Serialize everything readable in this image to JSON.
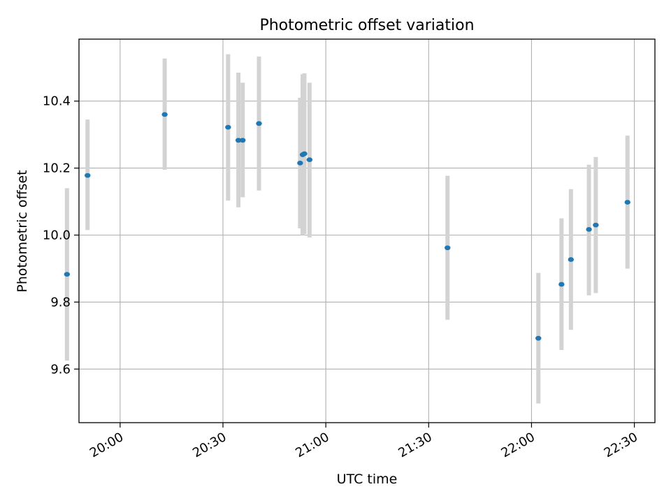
{
  "chart_data": {
    "type": "scatter",
    "title": "Photometric offset variation",
    "xlabel": "UTC time",
    "ylabel": "Photometric offset",
    "x_unit": "UTC",
    "xlim": [
      "19:48",
      "22:36"
    ],
    "ylim": [
      9.44,
      10.585
    ],
    "grid": true,
    "xticks": [
      {
        "value": "20:00",
        "label": "20:00"
      },
      {
        "value": "20:30",
        "label": "20:30"
      },
      {
        "value": "21:00",
        "label": "21:00"
      },
      {
        "value": "21:30",
        "label": "21:30"
      },
      {
        "value": "22:00",
        "label": "22:00"
      },
      {
        "value": "22:30",
        "label": "22:30"
      }
    ],
    "yticks": [
      {
        "value": 9.6,
        "label": "9.6"
      },
      {
        "value": 9.8,
        "label": "9.8"
      },
      {
        "value": 10.0,
        "label": "10.0"
      },
      {
        "value": 10.2,
        "label": "10.2"
      },
      {
        "value": 10.4,
        "label": "10.4"
      }
    ],
    "series": [
      {
        "marker_color": "#1f77b4",
        "errorbar_color": "#d3d3d3",
        "points": [
          {
            "x": "19:44:30",
            "y": 9.883,
            "ylow": 9.625,
            "yhigh": 10.14
          },
          {
            "x": "19:50:30",
            "y": 10.178,
            "ylow": 10.015,
            "yhigh": 10.345
          },
          {
            "x": "20:13:00",
            "y": 10.36,
            "ylow": 10.195,
            "yhigh": 10.527
          },
          {
            "x": "20:31:30",
            "y": 10.322,
            "ylow": 10.103,
            "yhigh": 10.54
          },
          {
            "x": "20:34:30",
            "y": 10.283,
            "ylow": 10.083,
            "yhigh": 10.485
          },
          {
            "x": "20:35:45",
            "y": 10.283,
            "ylow": 10.113,
            "yhigh": 10.455
          },
          {
            "x": "20:40:30",
            "y": 10.333,
            "ylow": 10.133,
            "yhigh": 10.533
          },
          {
            "x": "20:52:30",
            "y": 10.215,
            "ylow": 10.02,
            "yhigh": 10.41
          },
          {
            "x": "20:53:15",
            "y": 10.24,
            "ylow": 10.0,
            "yhigh": 10.48
          },
          {
            "x": "20:53:45",
            "y": 10.243,
            "ylow": 10.003,
            "yhigh": 10.483
          },
          {
            "x": "20:55:15",
            "y": 10.225,
            "ylow": 9.993,
            "yhigh": 10.455
          },
          {
            "x": "21:35:30",
            "y": 9.962,
            "ylow": 9.747,
            "yhigh": 10.177
          },
          {
            "x": "22:02:00",
            "y": 9.692,
            "ylow": 9.497,
            "yhigh": 9.887
          },
          {
            "x": "22:08:45",
            "y": 9.853,
            "ylow": 9.657,
            "yhigh": 10.05
          },
          {
            "x": "22:11:30",
            "y": 9.927,
            "ylow": 9.717,
            "yhigh": 10.137
          },
          {
            "x": "22:16:45",
            "y": 10.017,
            "ylow": 9.82,
            "yhigh": 10.21
          },
          {
            "x": "22:18:45",
            "y": 10.03,
            "ylow": 9.827,
            "yhigh": 10.233
          },
          {
            "x": "22:28:00",
            "y": 10.098,
            "ylow": 9.9,
            "yhigh": 10.297
          }
        ]
      }
    ]
  }
}
